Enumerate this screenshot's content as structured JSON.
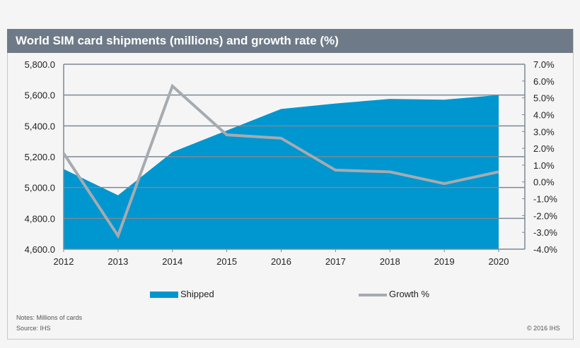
{
  "chart_data": {
    "type": "area+line",
    "title": "World SIM card shipments (millions) and  growth rate (%)",
    "categories": [
      "2012",
      "2013",
      "2014",
      "2015",
      "2016",
      "2017",
      "2018",
      "2019",
      "2020"
    ],
    "series": [
      {
        "name": "Shipped",
        "type": "area",
        "axis": "left",
        "color": "#0096cf",
        "values": [
          5120,
          4950,
          5230,
          5370,
          5510,
          5545,
          5575,
          5570,
          5600
        ]
      },
      {
        "name": "Growth %",
        "type": "line",
        "axis": "right",
        "color": "#a6abb0",
        "values": [
          1.7,
          -3.2,
          5.7,
          2.8,
          2.6,
          0.7,
          0.6,
          -0.1,
          0.6
        ]
      }
    ],
    "left_axis": {
      "ylim": [
        4600,
        5800
      ],
      "ticks": [
        "4,600.0",
        "4,800.0",
        "5,000.0",
        "5,200.0",
        "5,400.0",
        "5,600.0",
        "5,800.0"
      ]
    },
    "right_axis": {
      "ylim": [
        -4,
        7
      ],
      "ticks": [
        "-4.0%",
        "-3.0%",
        "-2.0%",
        "-1.0%",
        "0.0%",
        "1.0%",
        "2.0%",
        "3.0%",
        "4.0%",
        "5.0%",
        "6.0%",
        "7.0%"
      ]
    },
    "grid": true,
    "legend": "bottom"
  },
  "notes": "Notes: Millions of cards",
  "source": "Source: IHS",
  "copyright": "© 2016 IHS"
}
